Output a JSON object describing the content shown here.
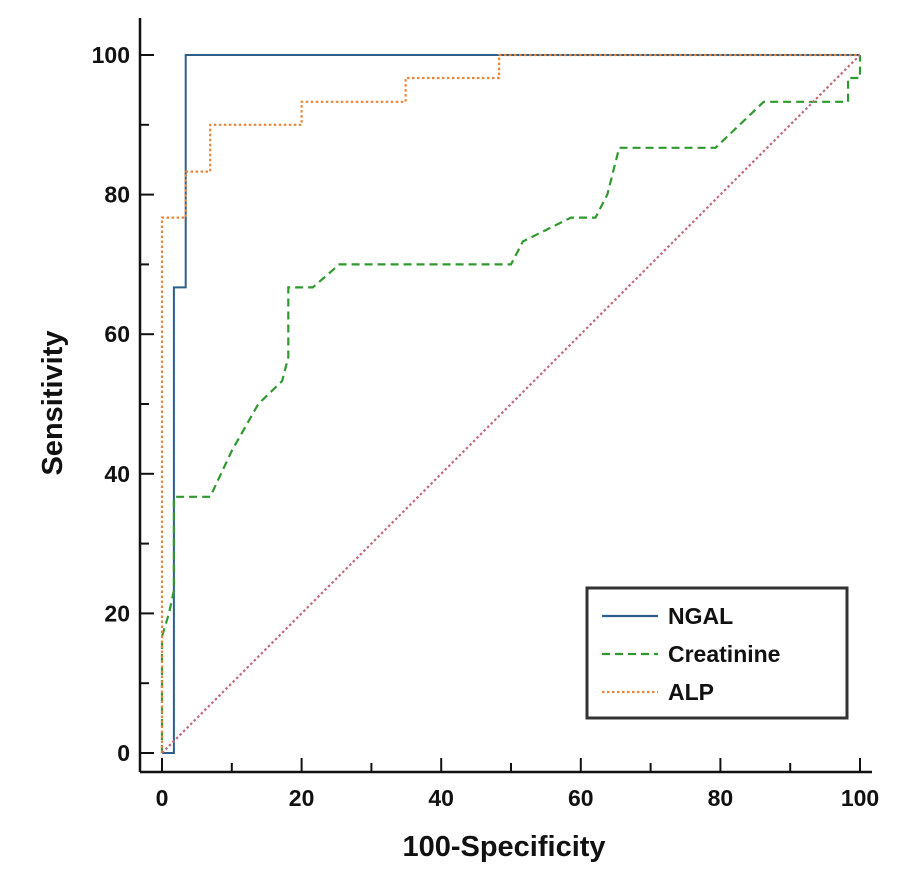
{
  "chart_data": {
    "type": "line",
    "xlabel": "100-Specificity",
    "ylabel": "Sensitivity",
    "xlim": [
      0,
      100
    ],
    "ylim": [
      0,
      100
    ],
    "x_ticks": [
      0,
      20,
      40,
      60,
      80,
      100
    ],
    "y_ticks": [
      0,
      20,
      40,
      60,
      80,
      100
    ],
    "grid": false,
    "legend_position": "bottom-right",
    "series": [
      {
        "name": "NGAL",
        "color": "#2e5f8a",
        "style": "solid",
        "points": [
          [
            0,
            0
          ],
          [
            1.7,
            0
          ],
          [
            1.7,
            66.7
          ],
          [
            3.4,
            66.7
          ],
          [
            3.4,
            100
          ],
          [
            100,
            100
          ]
        ]
      },
      {
        "name": "Creatinine",
        "color": "#2e9a2e",
        "style": "dashed",
        "points": [
          [
            0,
            0
          ],
          [
            0,
            16.7
          ],
          [
            1,
            20
          ],
          [
            1.7,
            23.3
          ],
          [
            1.7,
            36.7
          ],
          [
            6.9,
            36.7
          ],
          [
            10,
            43.3
          ],
          [
            13.8,
            50
          ],
          [
            17.2,
            53.3
          ],
          [
            18.1,
            56.7
          ],
          [
            18.1,
            66.7
          ],
          [
            21.6,
            66.7
          ],
          [
            25.4,
            70
          ],
          [
            50,
            70
          ],
          [
            51.7,
            73.3
          ],
          [
            58.6,
            76.7
          ],
          [
            62.1,
            76.7
          ],
          [
            63.8,
            80
          ],
          [
            65.5,
            86.7
          ],
          [
            79.3,
            86.7
          ],
          [
            86.2,
            93.3
          ],
          [
            98.3,
            93.3
          ],
          [
            98.3,
            96.7
          ],
          [
            100,
            96.7
          ],
          [
            100,
            100
          ]
        ]
      },
      {
        "name": "ALP",
        "color": "#e8853a",
        "style": "dotted",
        "points": [
          [
            0,
            0
          ],
          [
            0,
            76.7
          ],
          [
            3.4,
            76.7
          ],
          [
            3.4,
            83.3
          ],
          [
            6.9,
            83.3
          ],
          [
            6.9,
            90
          ],
          [
            20,
            90
          ],
          [
            20,
            93.3
          ],
          [
            34.9,
            93.3
          ],
          [
            34.9,
            96.7
          ],
          [
            48.3,
            96.7
          ],
          [
            48.3,
            100
          ],
          [
            100,
            100
          ]
        ]
      },
      {
        "color": "#c06a7a",
        "style": "dotted",
        "points": [
          [
            0,
            0
          ],
          [
            100,
            100
          ]
        ]
      }
    ]
  }
}
